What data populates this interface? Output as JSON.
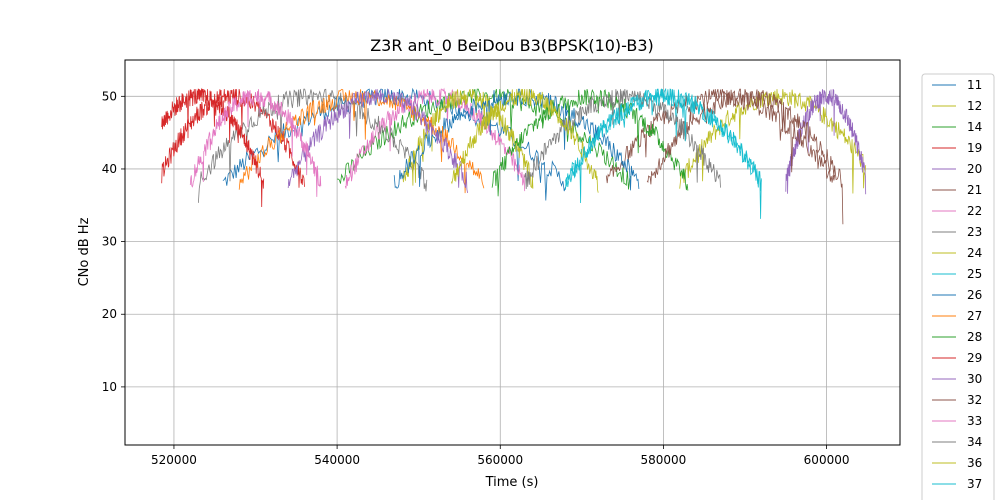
{
  "chart_data": {
    "type": "line",
    "title": "Z3R ant_0 BeiDou B3(BPSK(10)-B3)",
    "xlabel": "Time (s)",
    "ylabel": "CNo dB Hz",
    "xlim": [
      514000,
      609000
    ],
    "ylim": [
      2,
      55
    ],
    "grid": true,
    "legend_position": "right (outside plot, clipped at bottom)",
    "xticks": [
      520000,
      540000,
      560000,
      580000,
      600000
    ],
    "xtick_labels": [
      "520000",
      "540000",
      "560000",
      "580000",
      "600000"
    ],
    "yticks": [
      10,
      20,
      30,
      40,
      50
    ],
    "ytick_labels": [
      "10",
      "20",
      "30",
      "40",
      "50"
    ],
    "series_colors": [
      "#1f77b4",
      "#bcbd22",
      "#2ca02c",
      "#d62728",
      "#9467bd",
      "#8c564b",
      "#e377c2",
      "#7f7f7f",
      "#bcbd22",
      "#17becf",
      "#1f77b4",
      "#ff7f0e",
      "#2ca02c",
      "#d62728",
      "#9467bd",
      "#8c564b",
      "#e377c2",
      "#7f7f7f",
      "#bcbd22",
      "#17becf"
    ],
    "series": [
      {
        "name": "11",
        "center": 547000,
        "half_width": 21000
      },
      {
        "name": "12",
        "center": 594000,
        "half_width": 12000
      },
      {
        "name": "14",
        "center": 558000,
        "half_width": 18000
      },
      {
        "name": "19",
        "center": 527000,
        "half_width": 9000
      },
      {
        "name": "20",
        "center": 600000,
        "half_width": 5000
      },
      {
        "name": "21",
        "center": 587000,
        "half_width": 14000
      },
      {
        "name": "22",
        "center": 552000,
        "half_width": 11000
      },
      {
        "name": "23",
        "center": 537000,
        "half_width": 14000
      },
      {
        "name": "24",
        "center": 556000,
        "half_width": 8000
      },
      {
        "name": "25",
        "center": 580000,
        "half_width": 12000
      },
      {
        "name": "26",
        "center": 562000,
        "half_width": 15000
      },
      {
        "name": "27",
        "center": 543000,
        "half_width": 15000
      },
      {
        "name": "28",
        "center": 571000,
        "half_width": 12000
      },
      {
        "name": "29",
        "center": 523000,
        "half_width": 8000
      },
      {
        "name": "30",
        "center": 545000,
        "half_width": 11000
      },
      {
        "name": "32",
        "center": 590000,
        "half_width": 12000
      },
      {
        "name": "33",
        "center": 530000,
        "half_width": 8000
      },
      {
        "name": "34",
        "center": 575000,
        "half_width": 12000
      },
      {
        "name": "36",
        "center": 563000,
        "half_width": 9000
      },
      {
        "name": "37",
        "center": 580000,
        "half_width": 12000
      }
    ],
    "curve_model": "CNo rises from ~38 dB Hz at pass edges to ~50 dB Hz at peak",
    "cno_range": [
      38,
      50
    ]
  }
}
